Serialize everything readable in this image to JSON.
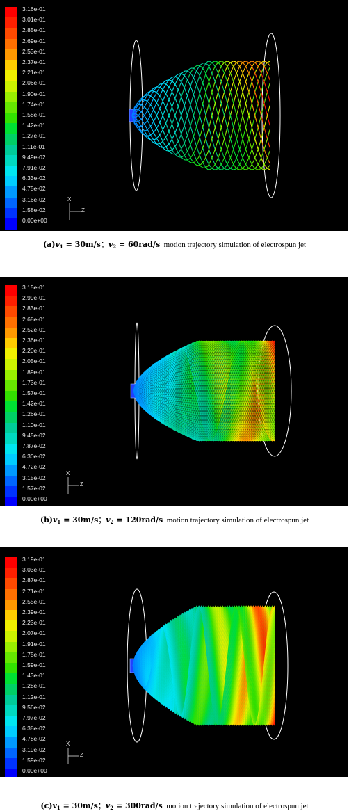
{
  "panels": [
    {
      "id": "a",
      "colorbar_labels": [
        "3.16e-01",
        "3.01e-01",
        "2.85e-01",
        "2.69e-01",
        "2.53e-01",
        "2.37e-01",
        "2.21e-01",
        "2.06e-01",
        "1.90e-01",
        "1.74e-01",
        "1.58e-01",
        "1.42e-01",
        "1.27e-01",
        "1.11e-01",
        "9.49e-02",
        "7.91e-02",
        "6.33e-02",
        "4.75e-02",
        "3.16e-02",
        "1.58e-02",
        "0.00e+00"
      ],
      "axis_x": "X",
      "axis_z": "Z",
      "caption": {
        "prefix": "(a)",
        "v1_sym": "v",
        "v1_sub": "1",
        "v1_val": " = 30m/s",
        "sep": "；",
        "v2_sym": "v",
        "v2_sub": "2",
        "v2_val": " = 60rad/s",
        "rest": "motion trajectory simulation of electrospun jet"
      }
    },
    {
      "id": "b",
      "colorbar_labels": [
        "3.15e-01",
        "2.99e-01",
        "2.83e-01",
        "2.68e-01",
        "2.52e-01",
        "2.36e-01",
        "2.20e-01",
        "2.05e-01",
        "1.89e-01",
        "1.73e-01",
        "1.57e-01",
        "1.42e-01",
        "1.26e-01",
        "1.10e-01",
        "9.45e-02",
        "7.87e-02",
        "6.30e-02",
        "4.72e-02",
        "3.15e-02",
        "1.57e-02",
        "0.00e+00"
      ],
      "axis_x": "X",
      "axis_z": "Z",
      "caption": {
        "prefix": "(b)",
        "v1_sym": "v",
        "v1_sub": "1",
        "v1_val": " = 30m/s",
        "sep": "；",
        "v2_sym": "v",
        "v2_sub": "2",
        "v2_val": " = 120rad/s",
        "rest": "motion trajectory simulation of electrospun jet"
      }
    },
    {
      "id": "c",
      "colorbar_labels": [
        "3.19e-01",
        "3.03e-01",
        "2.87e-01",
        "2.71e-01",
        "2.55e-01",
        "2.39e-01",
        "2.23e-01",
        "2.07e-01",
        "1.91e-01",
        "1.75e-01",
        "1.59e-01",
        "1.43e-01",
        "1.28e-01",
        "1.12e-01",
        "9.56e-02",
        "7.97e-02",
        "6.38e-02",
        "4.78e-02",
        "3.19e-02",
        "1.59e-02",
        "0.00e+00"
      ],
      "axis_x": "X",
      "axis_z": "Z",
      "caption": {
        "prefix": "(c)",
        "v1_sym": "v",
        "v1_sub": "1",
        "v1_val": " = 30m/s",
        "sep": "；",
        "v2_sym": "v",
        "v2_sub": "2",
        "v2_val": " = 300rad/s",
        "rest": "motion trajectory simulation of electrospun jet"
      }
    }
  ],
  "colormap": [
    "#0000ff",
    "#0033ff",
    "#0066ff",
    "#0099ff",
    "#00ccff",
    "#00e5f0",
    "#00d9c0",
    "#00cc99",
    "#00d066",
    "#00e033",
    "#33e000",
    "#66e600",
    "#99ee00",
    "#ccf200",
    "#f0f000",
    "#ffcc00",
    "#ff9900",
    "#ff7000",
    "#ff4a00",
    "#ff2000",
    "#ff0000"
  ]
}
